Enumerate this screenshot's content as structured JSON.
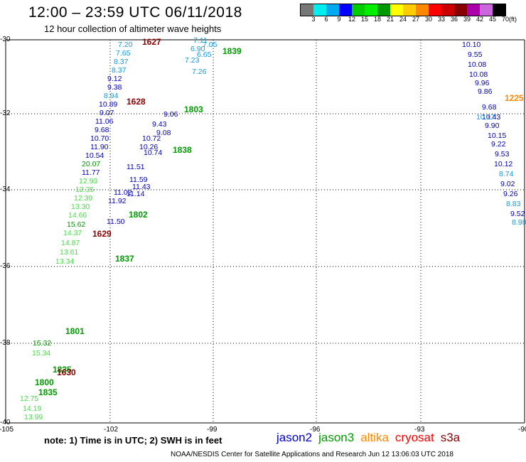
{
  "header": {
    "title": "12:00 – 23:59 UTC 06/11/2018",
    "subtitle": "12 hour collection of altimeter wave heights"
  },
  "colorbar": {
    "colors": [
      "#777777",
      "#00eeee",
      "#00aaee",
      "#0000ff",
      "#00cc00",
      "#00ee00",
      "#009900",
      "#ffff00",
      "#ffcc00",
      "#ff8800",
      "#ff0000",
      "#cc0000",
      "#880000",
      "#aa00aa",
      "#cc66dd",
      "#000000"
    ],
    "ticks": [
      "3",
      "6",
      "9",
      "12",
      "15",
      "18",
      "21",
      "24",
      "27",
      "30",
      "33",
      "36",
      "39",
      "42",
      "45",
      "70"
    ],
    "unit": "(ft)"
  },
  "axes": {
    "lon_ticks": [
      "-105",
      "-102",
      "-99",
      "-96",
      "-93",
      "-90"
    ],
    "lat_ticks": [
      "-30",
      "-32",
      "-34",
      "-36",
      "-38",
      "-40"
    ]
  },
  "colors": {
    "jason2": "#0000bb",
    "jason3": "#009900",
    "altika": "#ff8800",
    "cryosat": "#ff0000",
    "s3a": "#880000",
    "cyan": "#1199dd",
    "lightgreen": "#44dd44",
    "darkred": "#880000"
  },
  "tracks": [
    {
      "id": "t1",
      "color": "#1199dd",
      "values": [
        "7.20",
        "7.65",
        "8.37",
        "8.37"
      ]
    },
    {
      "id": "t2",
      "color": "#0000bb",
      "values": [
        "9.12",
        "9.38"
      ]
    },
    {
      "id": "t3",
      "color": "#1199dd",
      "values": [
        "8.94"
      ]
    },
    {
      "id": "t4",
      "color": "#0000bb",
      "values": [
        "10.89",
        "9.07",
        "11.06",
        "9.68",
        "10.70",
        "11.90",
        "10.54"
      ]
    },
    {
      "id": "t5",
      "color": "#009900",
      "values": [
        "20.07"
      ]
    },
    {
      "id": "t6",
      "color": "#0000bb",
      "values": [
        "11.77"
      ]
    },
    {
      "id": "t7",
      "color": "#44dd44",
      "values": [
        "12.93",
        "12.35",
        "12.39",
        "13.30",
        "14.66"
      ]
    },
    {
      "id": "t8",
      "color": "#009900",
      "values": [
        "15.62"
      ]
    },
    {
      "id": "t9",
      "color": "#44dd44",
      "values": [
        "14.37",
        "14.87",
        "13.61",
        "13.34"
      ]
    },
    {
      "id": "t10",
      "color": "#0000bb",
      "values": [
        "11.02",
        "11.92",
        "11.50"
      ]
    },
    {
      "id": "t11",
      "color": "#44dd44",
      "values": [
        "15.34",
        "14.19",
        "13.99",
        "12.75"
      ]
    },
    {
      "id": "t12",
      "color": "#009900",
      "values": [
        "15.32"
      ]
    },
    {
      "id": "t13",
      "color": "#1199dd",
      "values": [
        "7.11",
        "7.05",
        "6.90",
        "6.65",
        "7.23",
        "7.26"
      ]
    },
    {
      "id": "t14",
      "color": "#0000bb",
      "values": [
        "9.06",
        "9.43",
        "9.08",
        "10.72",
        "10.26",
        "10.74",
        "11.51",
        "11.59",
        "11.43",
        "11.14"
      ]
    },
    {
      "id": "t15",
      "color": "#0000bb",
      "values": [
        "10.10",
        "9.55",
        "10.08",
        "10.08",
        "9.96",
        "9.86",
        "9.68",
        "10.43",
        "9.90",
        "10.15",
        "9.22",
        "9.53",
        "10.12",
        "9.02",
        "9.26",
        "9.52"
      ]
    },
    {
      "id": "t16",
      "color": "#1199dd",
      "values": [
        "10.17",
        "8.74",
        "8.83",
        "8.98"
      ]
    }
  ],
  "time_labels": [
    {
      "text": "1627",
      "color": "#880000"
    },
    {
      "text": "1839",
      "color": "#009900"
    },
    {
      "text": "1628",
      "color": "#880000"
    },
    {
      "text": "1803",
      "color": "#009900"
    },
    {
      "text": "1838",
      "color": "#009900"
    },
    {
      "text": "1225",
      "color": "#ff8800"
    },
    {
      "text": "1802",
      "color": "#009900"
    },
    {
      "text": "1629",
      "color": "#880000"
    },
    {
      "text": "1837",
      "color": "#009900"
    },
    {
      "text": "1801",
      "color": "#009900"
    },
    {
      "text": "1835",
      "color": "#009900"
    },
    {
      "text": "1630",
      "color": "#880000"
    },
    {
      "text": "1800",
      "color": "#009900"
    },
    {
      "text": "1835",
      "color": "#009900"
    }
  ],
  "footer": {
    "note": "note:  1) Time is in UTC;  2) SWH is in feet",
    "legend": [
      {
        "name": "jason2",
        "color": "#0000cc"
      },
      {
        "name": "jason3",
        "color": "#009900"
      },
      {
        "name": "altika",
        "color": "#ff8800"
      },
      {
        "name": "cryosat",
        "color": "#ff0000"
      },
      {
        "name": "s3a",
        "color": "#880000"
      }
    ],
    "credit": "NOAA/NESDIS Center for Satellite Applications and Research    Jun 12 13:06:03 UTC 2018"
  }
}
